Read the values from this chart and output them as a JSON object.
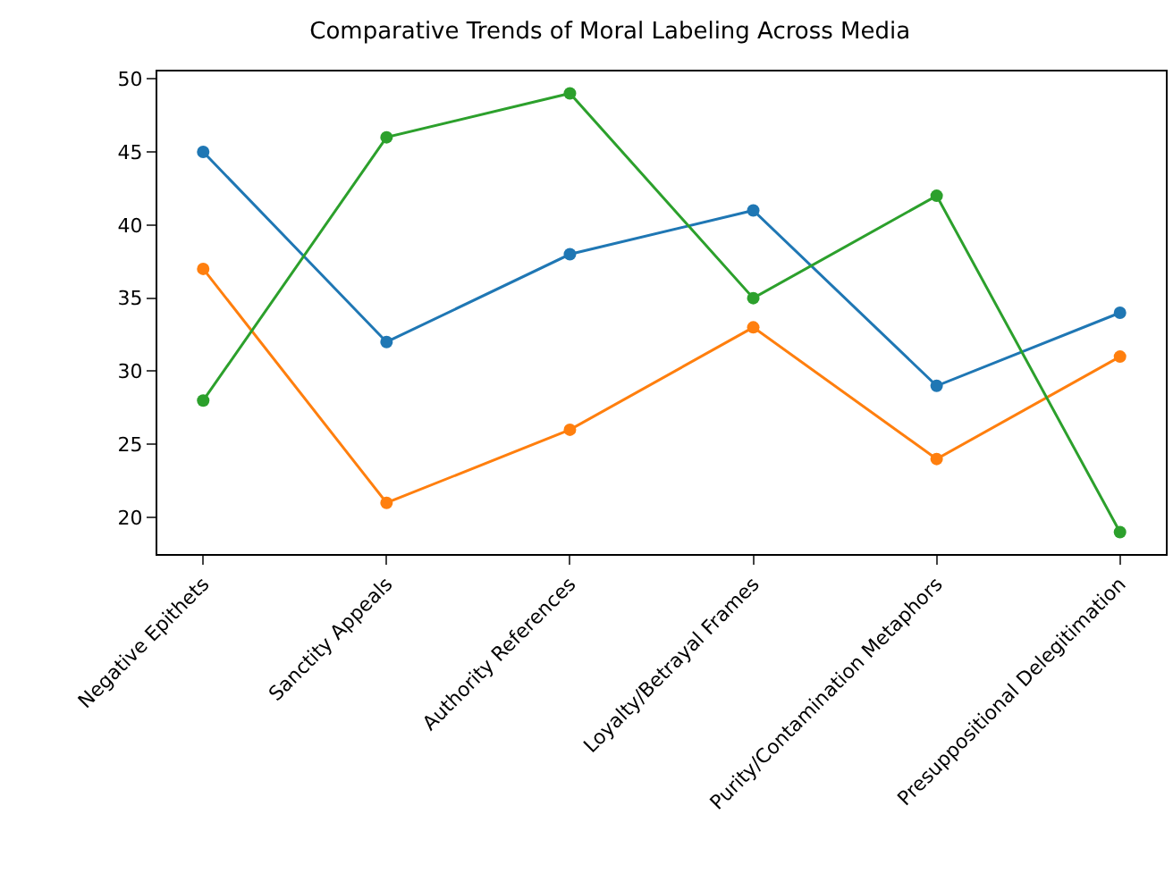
{
  "chart_data": {
    "type": "line",
    "title": "Comparative Trends of Moral Labeling Across Media",
    "categories": [
      "Negative Epithets",
      "Sanctity Appeals",
      "Authority References",
      "Loyalty/Betrayal Frames",
      "Purity/Contamination Metaphors",
      "Presuppositional Delegitimation"
    ],
    "series": [
      {
        "color": "#1f77b4",
        "values": [
          45,
          32,
          38,
          41,
          29,
          34
        ]
      },
      {
        "color": "#ff7f0e",
        "values": [
          37,
          21,
          26,
          33,
          24,
          31
        ]
      },
      {
        "color": "#2ca02c",
        "values": [
          28,
          46,
          49,
          35,
          42,
          19
        ]
      }
    ],
    "ylim": [
      17.5,
      50.5
    ],
    "yticks": [
      20,
      25,
      30,
      35,
      40,
      45,
      50
    ],
    "marker": "circle",
    "line_style": "solid"
  }
}
